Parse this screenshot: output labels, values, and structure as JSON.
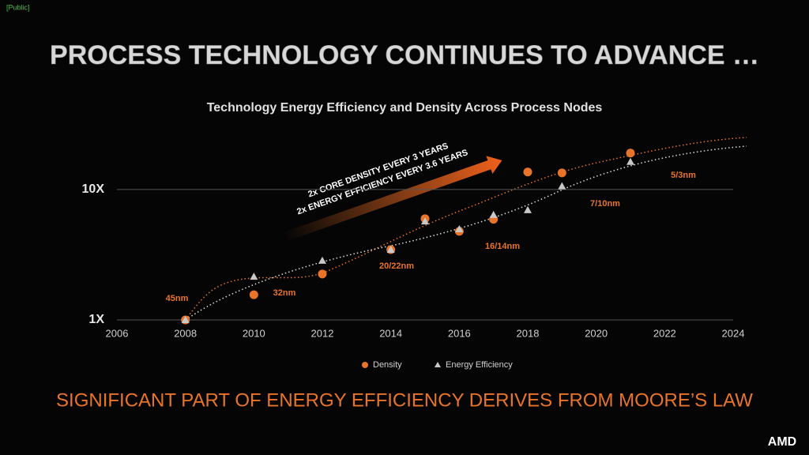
{
  "slide": {
    "tag": "[Public]",
    "title": "PROCESS TECHNOLOGY CONTINUES TO ADVANCE …",
    "footer": "SIGNIFICANT PART OF ENERGY EFFICIENCY DERIVES FROM MOORE’S LAW",
    "logo": "AMD"
  },
  "chart_data": {
    "type": "scatter",
    "title": "Technology Energy Efficiency and Density Across Process Nodes",
    "x": [
      2008,
      2010,
      2012,
      2014,
      2015,
      2016,
      2017,
      2018,
      2019,
      2021
    ],
    "series": [
      {
        "name": "Density",
        "color": "#e8742a",
        "marker": "circle",
        "values": [
          1,
          1.56,
          2.25,
          3.46,
          5.97,
          4.77,
          5.9,
          13.6,
          13.4,
          19.0
        ]
      },
      {
        "name": "Energy Efficiency",
        "color": "#c8c8c8",
        "marker": "triangle",
        "values": [
          1,
          2.15,
          2.85,
          3.46,
          5.7,
          4.97,
          6.4,
          6.95,
          10.6,
          16.3
        ]
      }
    ],
    "xlim": [
      2006,
      2024
    ],
    "xticks": [
      2006,
      2008,
      2010,
      2012,
      2014,
      2016,
      2018,
      2020,
      2022,
      2024
    ],
    "ylim": [
      1,
      30
    ],
    "yticks": [
      {
        "value": 1,
        "label": "1X"
      },
      {
        "value": 10,
        "label": "10X"
      }
    ],
    "log_y": true,
    "grid": true,
    "annotations": [
      "45nm",
      "32nm",
      "20/22nm",
      "16/14nm",
      "7/10nm",
      "5/3nm",
      "2x CORE DENSITY EVERY 3 YEARS",
      "2x ENERGY EFFICIENCY EVERY 3.6 YEARS"
    ]
  }
}
